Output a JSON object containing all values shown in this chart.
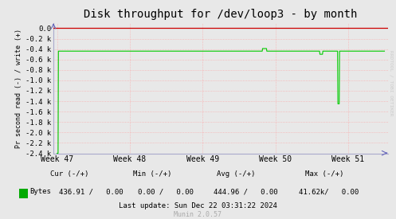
{
  "title": "Disk throughput for /dev/loop3 - by month",
  "ylabel": "Pr second read (-) / write (+)",
  "bg_color": "#e8e8e8",
  "plot_bg_color": "#e8e8e8",
  "line_color": "#00cc00",
  "top_line_color": "#cc0000",
  "grid_color": "#ff9999",
  "right_label": "RRDTOOL / TOBI OETIKER",
  "ylim": [
    -2400,
    100
  ],
  "yticks": [
    0,
    -200,
    -400,
    -600,
    -800,
    -1000,
    -1200,
    -1400,
    -1600,
    -1800,
    -2000,
    -2200,
    -2400
  ],
  "ytick_labels": [
    "0.0",
    "-0.2 k",
    "-0.4 k",
    "-0.6 k",
    "-0.8 k",
    "-1.0 k",
    "-1.2 k",
    "-1.4 k",
    "-1.6 k",
    "-1.8 k",
    "-2.0 k",
    "-2.2 k",
    "-2.4 k"
  ],
  "xtick_positions": [
    0,
    1,
    2,
    3,
    4
  ],
  "xtick_labels": [
    "Week 47",
    "Week 48",
    "Week 49",
    "Week 50",
    "Week 51"
  ],
  "footer_lastupdate": "Last update: Sun Dec 22 03:31:22 2024",
  "footer_munin": "Munin 2.0.57",
  "legend_color": "#00aa00",
  "flat_value": -440,
  "dip_x": 3.87,
  "dip_y": -1450,
  "week50_bump_x": 2.85,
  "week50_bump_y": -390,
  "week51_small_dip_x": 3.63,
  "week51_small_dip_y": -500
}
